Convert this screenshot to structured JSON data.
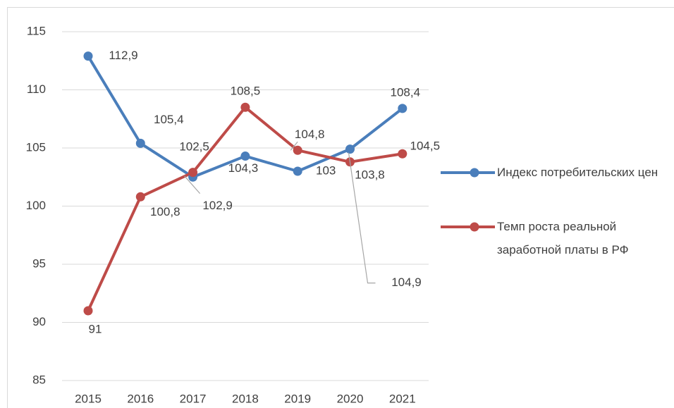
{
  "chart_data": {
    "type": "line",
    "categories": [
      "2015",
      "2016",
      "2017",
      "2018",
      "2019",
      "2020",
      "2021"
    ],
    "series": [
      {
        "name": "Индекс потребительских цен",
        "color": "#4a7ebb",
        "values": [
          112.9,
          105.4,
          102.5,
          104.3,
          103,
          104.9,
          108.4
        ],
        "value_labels": [
          "112,9",
          "105,4",
          "102,5",
          "104,3",
          "103",
          "104,9",
          "108,4"
        ]
      },
      {
        "name": "Темп роста реальной заработной платы в РФ",
        "color": "#be4b48",
        "values": [
          91,
          100.8,
          102.9,
          108.5,
          104.8,
          103.8,
          104.5
        ],
        "value_labels": [
          "91",
          "100,8",
          "102,9",
          "108,5",
          "104,8",
          "103,8",
          "104,5"
        ]
      }
    ],
    "ylim": [
      85,
      115
    ],
    "yticks": [
      85,
      90,
      95,
      100,
      105,
      110,
      115
    ],
    "grid": true,
    "legend": "right"
  }
}
